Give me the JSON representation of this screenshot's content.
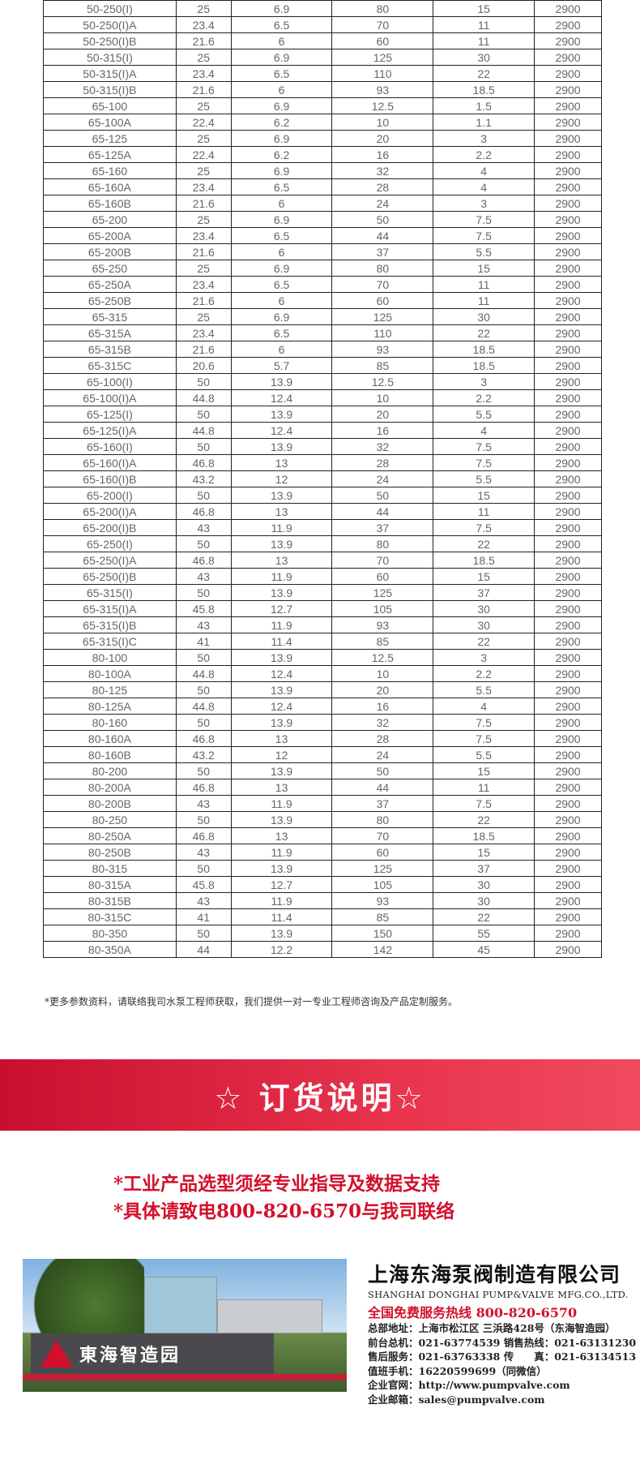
{
  "table": {
    "rows": [
      [
        "50-250(I)",
        "25",
        "6.9",
        "80",
        "15",
        "2900"
      ],
      [
        "50-250(I)A",
        "23.4",
        "6.5",
        "70",
        "11",
        "2900"
      ],
      [
        "50-250(I)B",
        "21.6",
        "6",
        "60",
        "11",
        "2900"
      ],
      [
        "50-315(I)",
        "25",
        "6.9",
        "125",
        "30",
        "2900"
      ],
      [
        "50-315(I)A",
        "23.4",
        "6.5",
        "110",
        "22",
        "2900"
      ],
      [
        "50-315(I)B",
        "21.6",
        "6",
        "93",
        "18.5",
        "2900"
      ],
      [
        "65-100",
        "25",
        "6.9",
        "12.5",
        "1.5",
        "2900"
      ],
      [
        "65-100A",
        "22.4",
        "6.2",
        "10",
        "1.1",
        "2900"
      ],
      [
        "65-125",
        "25",
        "6.9",
        "20",
        "3",
        "2900"
      ],
      [
        "65-125A",
        "22.4",
        "6.2",
        "16",
        "2.2",
        "2900"
      ],
      [
        "65-160",
        "25",
        "6.9",
        "32",
        "4",
        "2900"
      ],
      [
        "65-160A",
        "23.4",
        "6.5",
        "28",
        "4",
        "2900"
      ],
      [
        "65-160B",
        "21.6",
        "6",
        "24",
        "3",
        "2900"
      ],
      [
        "65-200",
        "25",
        "6.9",
        "50",
        "7.5",
        "2900"
      ],
      [
        "65-200A",
        "23.4",
        "6.5",
        "44",
        "7.5",
        "2900"
      ],
      [
        "65-200B",
        "21.6",
        "6",
        "37",
        "5.5",
        "2900"
      ],
      [
        "65-250",
        "25",
        "6.9",
        "80",
        "15",
        "2900"
      ],
      [
        "65-250A",
        "23.4",
        "6.5",
        "70",
        "11",
        "2900"
      ],
      [
        "65-250B",
        "21.6",
        "6",
        "60",
        "11",
        "2900"
      ],
      [
        "65-315",
        "25",
        "6.9",
        "125",
        "30",
        "2900"
      ],
      [
        "65-315A",
        "23.4",
        "6.5",
        "110",
        "22",
        "2900"
      ],
      [
        "65-315B",
        "21.6",
        "6",
        "93",
        "18.5",
        "2900"
      ],
      [
        "65-315C",
        "20.6",
        "5.7",
        "85",
        "18.5",
        "2900"
      ],
      [
        "65-100(I)",
        "50",
        "13.9",
        "12.5",
        "3",
        "2900"
      ],
      [
        "65-100(I)A",
        "44.8",
        "12.4",
        "10",
        "2.2",
        "2900"
      ],
      [
        "65-125(I)",
        "50",
        "13.9",
        "20",
        "5.5",
        "2900"
      ],
      [
        "65-125(I)A",
        "44.8",
        "12.4",
        "16",
        "4",
        "2900"
      ],
      [
        "65-160(I)",
        "50",
        "13.9",
        "32",
        "7.5",
        "2900"
      ],
      [
        "65-160(I)A",
        "46.8",
        "13",
        "28",
        "7.5",
        "2900"
      ],
      [
        "65-160(I)B",
        "43.2",
        "12",
        "24",
        "5.5",
        "2900"
      ],
      [
        "65-200(I)",
        "50",
        "13.9",
        "50",
        "15",
        "2900"
      ],
      [
        "65-200(I)A",
        "46.8",
        "13",
        "44",
        "11",
        "2900"
      ],
      [
        "65-200(I)B",
        "43",
        "11.9",
        "37",
        "7.5",
        "2900"
      ],
      [
        "65-250(I)",
        "50",
        "13.9",
        "80",
        "22",
        "2900"
      ],
      [
        "65-250(I)A",
        "46.8",
        "13",
        "70",
        "18.5",
        "2900"
      ],
      [
        "65-250(I)B",
        "43",
        "11.9",
        "60",
        "15",
        "2900"
      ],
      [
        "65-315(I)",
        "50",
        "13.9",
        "125",
        "37",
        "2900"
      ],
      [
        "65-315(I)A",
        "45.8",
        "12.7",
        "105",
        "30",
        "2900"
      ],
      [
        "65-315(I)B",
        "43",
        "11.9",
        "93",
        "30",
        "2900"
      ],
      [
        "65-315(I)C",
        "41",
        "11.4",
        "85",
        "22",
        "2900"
      ],
      [
        "80-100",
        "50",
        "13.9",
        "12.5",
        "3",
        "2900"
      ],
      [
        "80-100A",
        "44.8",
        "12.4",
        "10",
        "2.2",
        "2900"
      ],
      [
        "80-125",
        "50",
        "13.9",
        "20",
        "5.5",
        "2900"
      ],
      [
        "80-125A",
        "44.8",
        "12.4",
        "16",
        "4",
        "2900"
      ],
      [
        "80-160",
        "50",
        "13.9",
        "32",
        "7.5",
        "2900"
      ],
      [
        "80-160A",
        "46.8",
        "13",
        "28",
        "7.5",
        "2900"
      ],
      [
        "80-160B",
        "43.2",
        "12",
        "24",
        "5.5",
        "2900"
      ],
      [
        "80-200",
        "50",
        "13.9",
        "50",
        "15",
        "2900"
      ],
      [
        "80-200A",
        "46.8",
        "13",
        "44",
        "11",
        "2900"
      ],
      [
        "80-200B",
        "43",
        "11.9",
        "37",
        "7.5",
        "2900"
      ],
      [
        "80-250",
        "50",
        "13.9",
        "80",
        "22",
        "2900"
      ],
      [
        "80-250A",
        "46.8",
        "13",
        "70",
        "18.5",
        "2900"
      ],
      [
        "80-250B",
        "43",
        "11.9",
        "60",
        "15",
        "2900"
      ],
      [
        "80-315",
        "50",
        "13.9",
        "125",
        "37",
        "2900"
      ],
      [
        "80-315A",
        "45.8",
        "12.7",
        "105",
        "30",
        "2900"
      ],
      [
        "80-315B",
        "43",
        "11.9",
        "93",
        "30",
        "2900"
      ],
      [
        "80-315C",
        "41",
        "11.4",
        "85",
        "22",
        "2900"
      ],
      [
        "80-350",
        "50",
        "13.9",
        "150",
        "55",
        "2900"
      ],
      [
        "80-350A",
        "44",
        "12.2",
        "142",
        "45",
        "2900"
      ]
    ]
  },
  "note": "*更多参数资料，请联络我司水泵工程师获取，我们提供一对一专业工程师咨询及产品定制服务。",
  "banner": {
    "title": "☆ 订货说明☆",
    "color": "#d3102c"
  },
  "order_lines": [
    "*工业产品选型须经专业指导及数据支持",
    "*具体请致电800-820-6570与我司联络"
  ],
  "photo": {
    "sign": "東海智造园"
  },
  "company": {
    "name_cn": "上海东海泵阀制造有限公司",
    "name_en": "SHANGHAI DONGHAI PUMP&VALVE MFG.CO.,LTD.",
    "hotline": "全国免费服务热线  800-820-6570",
    "lines": [
      "总部地址：上海市松江区 三浜路428号（东海智造园）",
      "前台总机：021-63774539   销售热线：021-63131230",
      "售后服务：021-63763338   传　　真：021-63134513",
      "值班手机：16220599699（同微信）",
      "企业官网：http://www.pumpvalve.com",
      "企业邮箱：sales@pumpvalve.com"
    ]
  }
}
